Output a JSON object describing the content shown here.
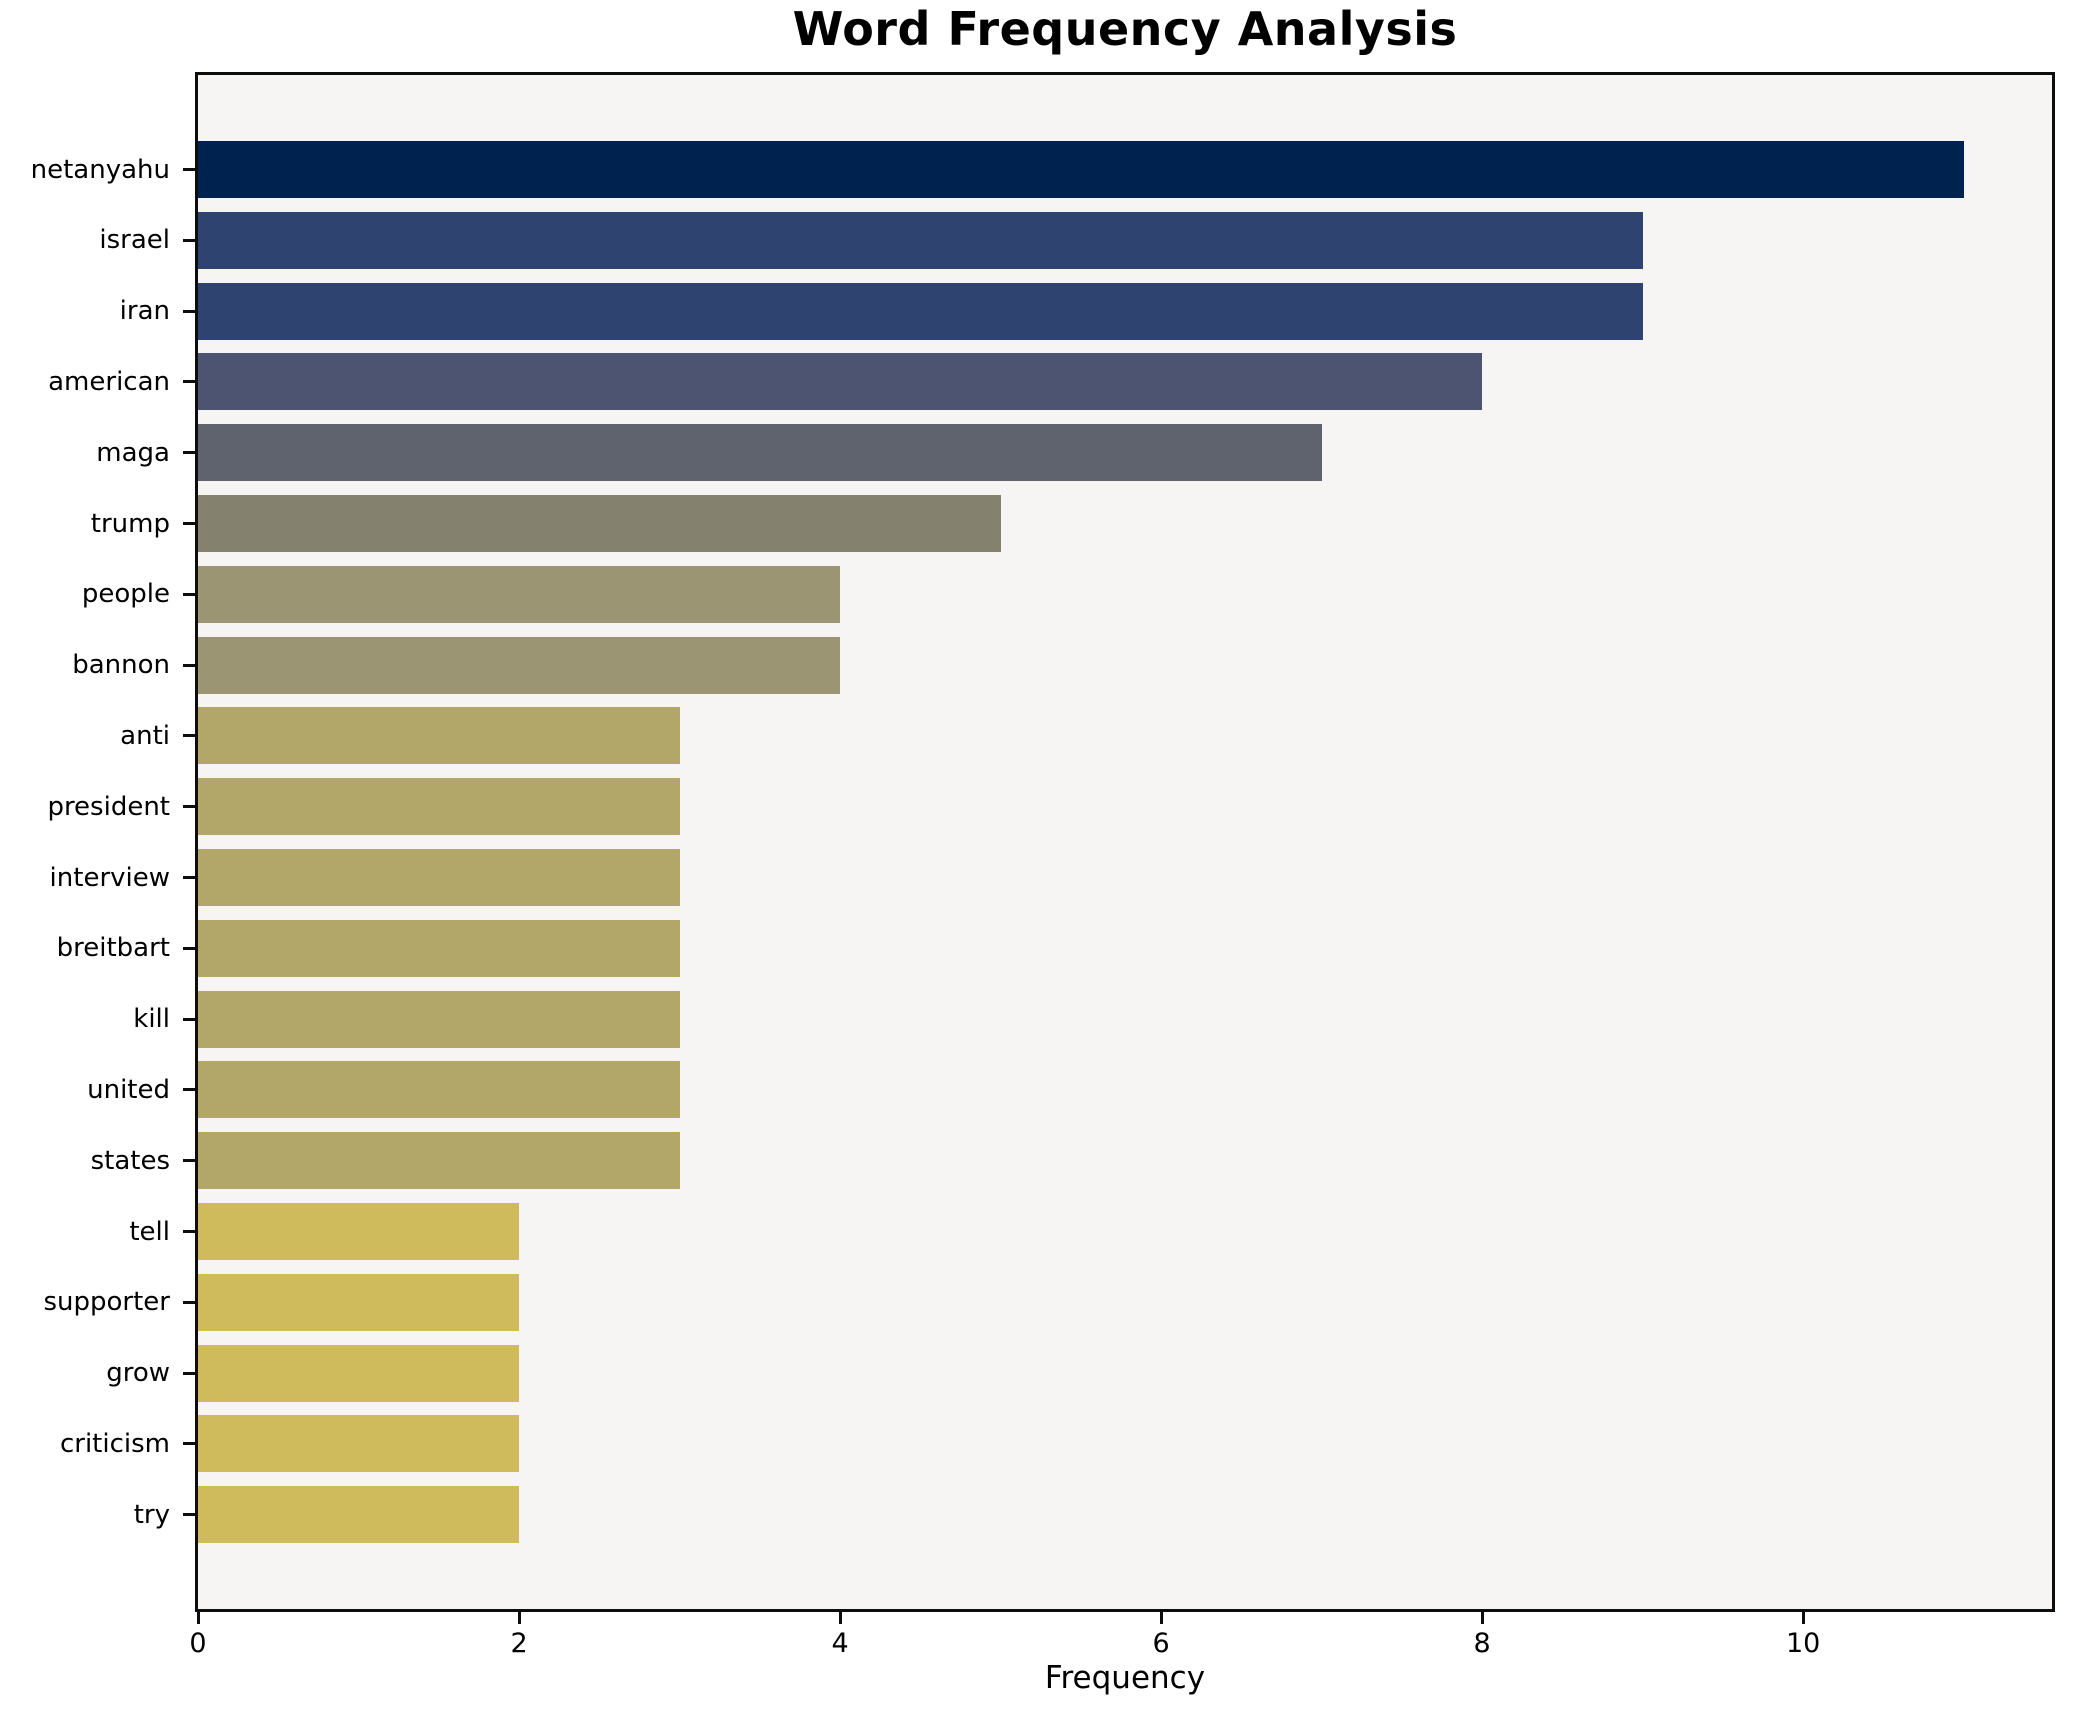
{
  "title": "Word Frequency Analysis",
  "chart_data": {
    "type": "bar",
    "orientation": "horizontal",
    "title": "Word Frequency Analysis",
    "xlabel": "Frequency",
    "ylabel": "",
    "xlim": [
      0,
      11.55
    ],
    "xticks": [
      0,
      2,
      4,
      6,
      8,
      10
    ],
    "grid": false,
    "legend_position": "none",
    "plot_bg_color": "#f6f5f4",
    "spine_color": "#0d0d0d",
    "categories": [
      "netanyahu",
      "israel",
      "iran",
      "american",
      "maga",
      "trump",
      "people",
      "bannon",
      "anti",
      "president",
      "interview",
      "breitbart",
      "kill",
      "united",
      "states",
      "tell",
      "supporter",
      "grow",
      "criticism",
      "try"
    ],
    "values": [
      11,
      9,
      9,
      8,
      7,
      5,
      4,
      4,
      3,
      3,
      3,
      3,
      3,
      3,
      3,
      2,
      2,
      2,
      2,
      2
    ],
    "bar_colors": [
      "#00224f",
      "#2e4370",
      "#2e4370",
      "#4c5472",
      "#5f636e",
      "#84826f",
      "#9c9573",
      "#9c9573",
      "#b2a668",
      "#b2a668",
      "#b2a668",
      "#b2a668",
      "#b2a668",
      "#b2a668",
      "#b2a668",
      "#cfbb5b",
      "#cfbb5b",
      "#cfbb5b",
      "#cfbb5b",
      "#cfbb5b"
    ]
  }
}
